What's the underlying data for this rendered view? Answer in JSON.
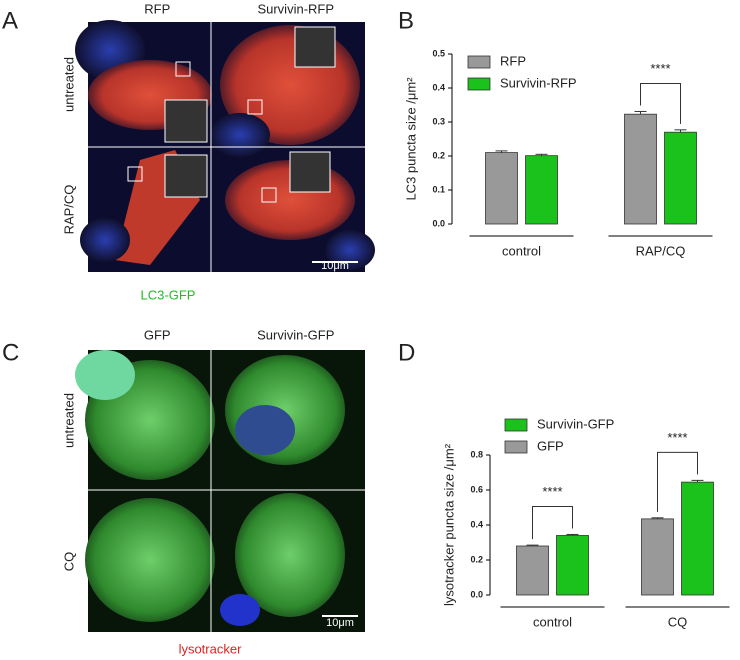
{
  "image_panels": [
    {
      "panel_label": "A",
      "columns": [
        "RFP",
        "Survivin-RFP"
      ],
      "rows": [
        "untreated",
        "RAP/CQ"
      ],
      "scale_bar": "10μm",
      "caption": "LC3-GFP"
    },
    {
      "panel_label": "C",
      "columns": [
        "GFP",
        "Survivin-GFP"
      ],
      "rows": [
        "untreated",
        "CQ"
      ],
      "scale_bar": "10μm",
      "caption": "lysotracker"
    }
  ],
  "chart_data": [
    {
      "type": "bar",
      "panel_label": "B",
      "y_label": "LC3 puncta size /μm²",
      "categories": [
        "control",
        "RAP/CQ"
      ],
      "series": [
        {
          "name": "RFP",
          "color": "#999999",
          "values": [
            0.21,
            0.323
          ],
          "errors": [
            0.005,
            0.008
          ]
        },
        {
          "name": "Survivin-RFP",
          "color": "#1cc21c",
          "values": [
            0.201,
            0.27
          ],
          "errors": [
            0.004,
            0.007
          ]
        }
      ],
      "ylim": [
        0,
        0.5
      ],
      "yticks": [
        {
          "value": 0,
          "label": "0.0"
        },
        0.1,
        0.2,
        0.3,
        0.4,
        0.5
      ],
      "legend_order": [
        0,
        1
      ],
      "annotations": [
        {
          "text": "****",
          "category": 1
        }
      ]
    },
    {
      "type": "bar",
      "panel_label": "D",
      "y_label": "lysotracker puncta size /μm²",
      "categories": [
        "control",
        "CQ"
      ],
      "series": [
        {
          "name": "GFP",
          "color": "#999999",
          "values": [
            0.28,
            0.435
          ],
          "errors": [
            0.005,
            0.006
          ]
        },
        {
          "name": "Survivin-GFP",
          "color": "#1cc21c",
          "values": [
            0.34,
            0.645
          ],
          "errors": [
            0.006,
            0.01
          ]
        }
      ],
      "ylim": [
        0,
        0.8
      ],
      "yticks": [
        {
          "value": 0,
          "label": "0.0"
        },
        0.2,
        0.4,
        0.6,
        0.8
      ],
      "legend_order": [
        1,
        0
      ],
      "annotations": [
        {
          "text": "****",
          "category": 0
        },
        {
          "text": "****",
          "category": 1
        }
      ]
    }
  ]
}
